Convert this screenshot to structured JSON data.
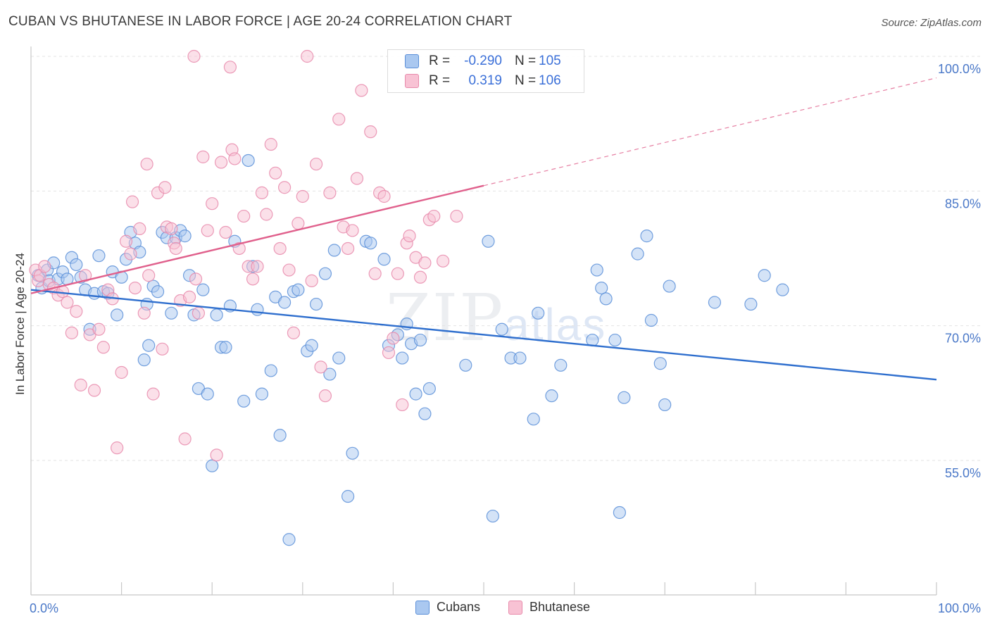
{
  "title": "CUBAN VS BHUTANESE IN LABOR FORCE | AGE 20-24 CORRELATION CHART",
  "source": "Source: ZipAtlas.com",
  "watermark": {
    "zip": "ZIP",
    "atlas": "atlas"
  },
  "colors": {
    "cubans_fill": "#aac8f0",
    "cubans_stroke": "#5b8fd8",
    "cubans_line": "#2f6fce",
    "bhutanese_fill": "#f8c2d4",
    "bhutanese_stroke": "#e88aab",
    "bhutanese_line": "#e0608c",
    "tick_label": "#4a78c8",
    "grid": "#e3e3e3"
  },
  "stats_legend": {
    "rows": [
      {
        "r_label": "R =",
        "r_value": "-0.290",
        "n_label": "N =",
        "n_value": "105"
      },
      {
        "r_label": "R =",
        "r_value": "0.319",
        "n_label": "N =",
        "n_value": "106"
      }
    ]
  },
  "legend": {
    "cubans": "Cubans",
    "bhutanese": "Bhutanese"
  },
  "chart_data": {
    "type": "scatter",
    "ylabel": "In Labor Force | Age 20-24",
    "xlim": [
      0,
      100
    ],
    "ylim": [
      43,
      102
    ],
    "x_tick_labels": [
      {
        "value": 0,
        "label": "0.0%"
      },
      {
        "value": 100,
        "label": "100.0%"
      }
    ],
    "y_tick_labels": [
      {
        "value": 100,
        "label": "100.0%"
      },
      {
        "value": 85,
        "label": "85.0%"
      },
      {
        "value": 70,
        "label": "70.0%"
      },
      {
        "value": 55,
        "label": "55.0%"
      }
    ],
    "grid": true,
    "series": [
      {
        "name": "Cubans",
        "trend": {
          "x": [
            0,
            100
          ],
          "y": [
            74.0,
            64.0
          ],
          "dashed_after": null
        },
        "points": [
          [
            0.8,
            75.6
          ],
          [
            1.2,
            74.2
          ],
          [
            1.8,
            76.2
          ],
          [
            2.0,
            75.0
          ],
          [
            2.5,
            77.0
          ],
          [
            3.0,
            75.2
          ],
          [
            3.5,
            76.0
          ],
          [
            4.0,
            75.2
          ],
          [
            4.5,
            77.6
          ],
          [
            5.0,
            76.8
          ],
          [
            5.5,
            75.4
          ],
          [
            6.0,
            74.0
          ],
          [
            6.5,
            69.6
          ],
          [
            7.0,
            73.6
          ],
          [
            7.5,
            77.8
          ],
          [
            8.0,
            73.8
          ],
          [
            8.5,
            73.6
          ],
          [
            9.0,
            76.0
          ],
          [
            9.5,
            71.2
          ],
          [
            10.0,
            75.4
          ],
          [
            10.5,
            77.4
          ],
          [
            11.0,
            80.4
          ],
          [
            11.5,
            79.2
          ],
          [
            12.0,
            78.2
          ],
          [
            12.5,
            66.2
          ],
          [
            12.8,
            72.4
          ],
          [
            13.0,
            67.8
          ],
          [
            13.5,
            74.4
          ],
          [
            14.0,
            73.8
          ],
          [
            14.5,
            80.4
          ],
          [
            15.0,
            79.8
          ],
          [
            15.5,
            71.4
          ],
          [
            16.0,
            79.8
          ],
          [
            16.5,
            80.6
          ],
          [
            17.0,
            80.0
          ],
          [
            17.5,
            75.6
          ],
          [
            18.0,
            71.2
          ],
          [
            18.5,
            63.0
          ],
          [
            19.0,
            74.0
          ],
          [
            19.5,
            62.4
          ],
          [
            20.0,
            54.4
          ],
          [
            20.5,
            71.2
          ],
          [
            21.0,
            67.6
          ],
          [
            21.5,
            67.6
          ],
          [
            22.0,
            72.2
          ],
          [
            22.5,
            79.4
          ],
          [
            23.5,
            61.6
          ],
          [
            24.5,
            76.6
          ],
          [
            25.0,
            71.8
          ],
          [
            25.5,
            62.4
          ],
          [
            24.0,
            88.4
          ],
          [
            26.5,
            65.0
          ],
          [
            27.0,
            73.2
          ],
          [
            27.5,
            57.8
          ],
          [
            28.0,
            72.6
          ],
          [
            28.5,
            46.2
          ],
          [
            29.0,
            73.8
          ],
          [
            29.5,
            74.0
          ],
          [
            30.5,
            67.2
          ],
          [
            31.0,
            67.8
          ],
          [
            31.5,
            72.4
          ],
          [
            32.5,
            75.8
          ],
          [
            33.0,
            64.6
          ],
          [
            33.5,
            78.4
          ],
          [
            34.0,
            66.4
          ],
          [
            35.0,
            51.0
          ],
          [
            35.5,
            55.8
          ],
          [
            37.0,
            79.4
          ],
          [
            37.5,
            79.2
          ],
          [
            39.0,
            77.4
          ],
          [
            39.5,
            67.8
          ],
          [
            40.5,
            69.0
          ],
          [
            41.0,
            66.4
          ],
          [
            41.5,
            70.2
          ],
          [
            42.0,
            68.0
          ],
          [
            42.5,
            62.4
          ],
          [
            43.0,
            68.4
          ],
          [
            43.5,
            60.2
          ],
          [
            44.0,
            63.0
          ],
          [
            48.0,
            65.6
          ],
          [
            50.5,
            79.4
          ],
          [
            51.0,
            48.8
          ],
          [
            52.0,
            69.6
          ],
          [
            53.0,
            66.4
          ],
          [
            54.0,
            66.4
          ],
          [
            55.5,
            59.6
          ],
          [
            56.0,
            71.4
          ],
          [
            57.5,
            62.2
          ],
          [
            58.5,
            65.6
          ],
          [
            62.0,
            68.4
          ],
          [
            62.5,
            76.2
          ],
          [
            63.0,
            74.2
          ],
          [
            63.5,
            73.0
          ],
          [
            64.5,
            68.4
          ],
          [
            65.0,
            49.2
          ],
          [
            65.5,
            62.0
          ],
          [
            67.0,
            78.0
          ],
          [
            68.0,
            80.0
          ],
          [
            68.5,
            70.6
          ],
          [
            69.5,
            65.8
          ],
          [
            70.0,
            61.2
          ],
          [
            70.5,
            74.4
          ],
          [
            75.5,
            72.6
          ],
          [
            79.5,
            72.4
          ],
          [
            81.0,
            75.6
          ],
          [
            83.0,
            74.0
          ]
        ]
      },
      {
        "name": "Bhutanese",
        "trend": {
          "x": [
            0,
            100
          ],
          "y": [
            73.6,
            97.6
          ],
          "dashed_after": 50
        },
        "points": [
          [
            0.5,
            76.2
          ],
          [
            0.8,
            75.0
          ],
          [
            1.0,
            75.6
          ],
          [
            1.5,
            76.6
          ],
          [
            2.0,
            74.6
          ],
          [
            2.5,
            74.2
          ],
          [
            3.0,
            73.4
          ],
          [
            3.5,
            73.8
          ],
          [
            4.0,
            72.6
          ],
          [
            4.5,
            69.2
          ],
          [
            5.0,
            71.6
          ],
          [
            5.5,
            63.4
          ],
          [
            6.0,
            75.6
          ],
          [
            6.5,
            69.0
          ],
          [
            7.0,
            62.8
          ],
          [
            7.5,
            69.6
          ],
          [
            8.0,
            67.6
          ],
          [
            8.5,
            74.0
          ],
          [
            9.0,
            73.0
          ],
          [
            9.5,
            56.4
          ],
          [
            10.0,
            64.8
          ],
          [
            10.5,
            79.4
          ],
          [
            11.0,
            78.0
          ],
          [
            11.2,
            83.8
          ],
          [
            11.5,
            74.2
          ],
          [
            12.0,
            80.8
          ],
          [
            12.5,
            71.4
          ],
          [
            12.8,
            88.0
          ],
          [
            13.0,
            75.6
          ],
          [
            13.5,
            62.4
          ],
          [
            14.0,
            84.8
          ],
          [
            14.5,
            67.4
          ],
          [
            14.8,
            85.4
          ],
          [
            15.0,
            81.0
          ],
          [
            15.5,
            80.8
          ],
          [
            15.8,
            79.2
          ],
          [
            16.0,
            78.6
          ],
          [
            16.5,
            72.8
          ],
          [
            17.0,
            57.4
          ],
          [
            17.5,
            73.2
          ],
          [
            18.0,
            100.0
          ],
          [
            18.2,
            75.2
          ],
          [
            18.5,
            71.4
          ],
          [
            19.0,
            88.8
          ],
          [
            19.5,
            80.6
          ],
          [
            20.0,
            83.6
          ],
          [
            20.5,
            55.6
          ],
          [
            21.0,
            88.2
          ],
          [
            21.5,
            80.4
          ],
          [
            22.0,
            98.8
          ],
          [
            22.2,
            89.6
          ],
          [
            22.5,
            88.6
          ],
          [
            23.0,
            78.6
          ],
          [
            23.5,
            82.2
          ],
          [
            24.0,
            76.6
          ],
          [
            24.5,
            75.2
          ],
          [
            25.0,
            76.6
          ],
          [
            25.5,
            84.8
          ],
          [
            26.0,
            82.4
          ],
          [
            26.5,
            90.2
          ],
          [
            27.0,
            87.0
          ],
          [
            27.5,
            78.6
          ],
          [
            28.0,
            85.4
          ],
          [
            28.5,
            76.2
          ],
          [
            29.0,
            69.2
          ],
          [
            29.5,
            81.4
          ],
          [
            30.0,
            84.4
          ],
          [
            30.5,
            100.0
          ],
          [
            31.0,
            75.0
          ],
          [
            31.5,
            88.0
          ],
          [
            32.0,
            65.4
          ],
          [
            32.5,
            62.2
          ],
          [
            33.0,
            84.8
          ],
          [
            34.0,
            93.0
          ],
          [
            34.5,
            81.0
          ],
          [
            35.0,
            78.6
          ],
          [
            35.5,
            80.6
          ],
          [
            36.0,
            86.4
          ],
          [
            36.5,
            96.2
          ],
          [
            37.5,
            91.6
          ],
          [
            38.0,
            75.8
          ],
          [
            38.5,
            84.8
          ],
          [
            39.0,
            84.4
          ],
          [
            39.5,
            67.0
          ],
          [
            40.0,
            68.6
          ],
          [
            40.5,
            75.8
          ],
          [
            41.0,
            61.2
          ],
          [
            41.5,
            79.2
          ],
          [
            41.8,
            80.0
          ],
          [
            42.0,
            100.0
          ],
          [
            42.5,
            77.6
          ],
          [
            43.0,
            75.4
          ],
          [
            43.5,
            77.0
          ],
          [
            44.0,
            81.8
          ],
          [
            44.5,
            82.2
          ],
          [
            45.5,
            77.2
          ],
          [
            47.0,
            82.2
          ]
        ]
      }
    ]
  }
}
